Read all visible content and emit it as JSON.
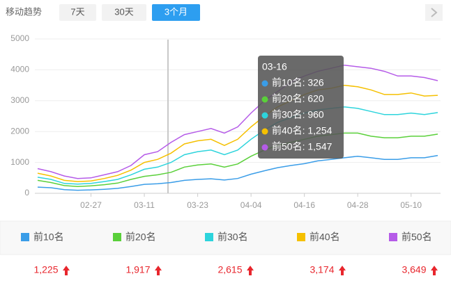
{
  "header": {
    "label": "移动趋势",
    "ranges": [
      "7天",
      "30天",
      "3个月"
    ],
    "active": 2
  },
  "chart_data": {
    "type": "line",
    "categories": [
      null,
      null,
      null,
      null,
      "02-27",
      null,
      null,
      null,
      "03-11",
      null,
      null,
      null,
      "03-23",
      null,
      null,
      null,
      "04-04",
      null,
      null,
      null,
      "04-16",
      null,
      null,
      null,
      "04-28",
      null,
      null,
      null,
      "05-10",
      null,
      null
    ],
    "ylim": [
      0,
      5000
    ],
    "yticks": [
      0,
      1000,
      2000,
      3000,
      4000,
      5000
    ],
    "grid": true,
    "series": [
      {
        "name": "前10名",
        "color": "#3a9de8",
        "current": {
          "value": 1225,
          "label": "1,225"
        },
        "values": [
          200,
          180,
          120,
          100,
          110,
          130,
          160,
          220,
          290,
          310,
          350,
          420,
          450,
          470,
          430,
          480,
          620,
          730,
          830,
          900,
          960,
          1050,
          1100,
          1150,
          1200,
          1150,
          1100,
          1100,
          1150,
          1150,
          1225
        ]
      },
      {
        "name": "前20名",
        "color": "#5ad03a",
        "current": {
          "value": 1917,
          "label": "1,917"
        },
        "values": [
          420,
          350,
          250,
          220,
          240,
          280,
          330,
          450,
          550,
          600,
          680,
          850,
          920,
          950,
          850,
          950,
          1200,
          1400,
          1550,
          1650,
          1750,
          1850,
          1900,
          1950,
          1950,
          1850,
          1800,
          1800,
          1850,
          1850,
          1917
        ]
      },
      {
        "name": "前30名",
        "color": "#2dd4dc",
        "current": {
          "value": 2615,
          "label": "2,615"
        },
        "values": [
          520,
          450,
          320,
          300,
          320,
          380,
          450,
          600,
          780,
          850,
          1000,
          1250,
          1350,
          1400,
          1250,
          1400,
          1750,
          2050,
          2300,
          2450,
          2600,
          2700,
          2750,
          2800,
          2750,
          2650,
          2550,
          2550,
          2600,
          2550,
          2615
        ]
      },
      {
        "name": "前40名",
        "color": "#f5c000",
        "current": {
          "value": 3174,
          "label": "3,174"
        },
        "values": [
          650,
          560,
          420,
          380,
          400,
          480,
          580,
          750,
          1000,
          1100,
          1300,
          1600,
          1700,
          1750,
          1550,
          1750,
          2150,
          2500,
          2800,
          3000,
          3200,
          3350,
          3400,
          3500,
          3450,
          3350,
          3200,
          3200,
          3250,
          3150,
          3174
        ]
      },
      {
        "name": "前50名",
        "color": "#b55be8",
        "current": {
          "value": 3649,
          "label": "3,649"
        },
        "values": [
          800,
          700,
          560,
          480,
          500,
          600,
          700,
          900,
          1250,
          1350,
          1650,
          1900,
          2000,
          2100,
          1950,
          2150,
          2600,
          3000,
          3300,
          3600,
          3800,
          3950,
          4050,
          4150,
          4100,
          4050,
          3950,
          3800,
          3800,
          3750,
          3649
        ]
      }
    ],
    "tooltip": {
      "title": "03-16",
      "rows": [
        "前10名: 326",
        "前20名: 620",
        "前30名: 960",
        "前40名: 1,254",
        "前50名: 1,547"
      ]
    }
  }
}
